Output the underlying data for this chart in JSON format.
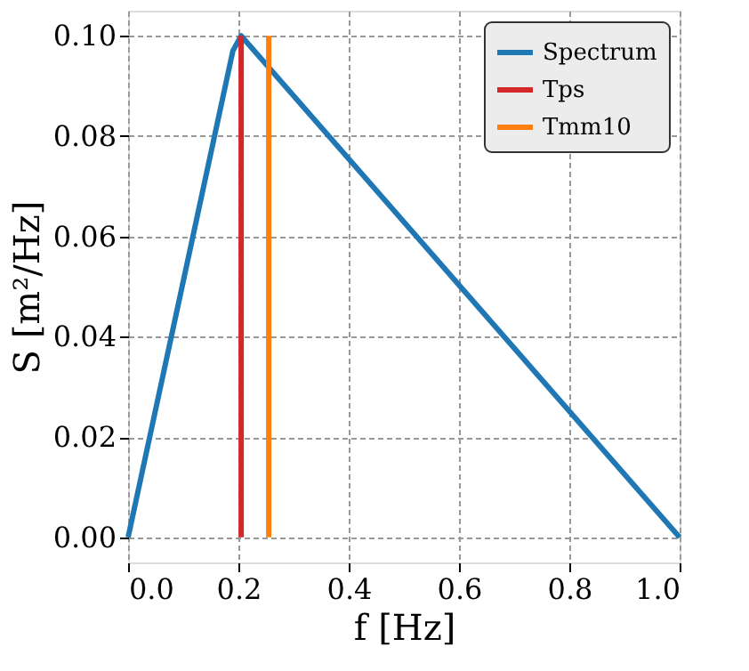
{
  "chart_data": {
    "type": "line",
    "xlabel": "f [Hz]",
    "ylabel": "S [m²/Hz]",
    "xlim": [
      0.0,
      1.0
    ],
    "xticks": [
      {
        "value": 0,
        "label": "0.0"
      },
      {
        "value": 0.2,
        "label": "0.2"
      },
      {
        "value": 0.4,
        "label": "0.4"
      },
      {
        "value": 0.6,
        "label": "0.6"
      },
      {
        "value": 0.8,
        "label": "0.8"
      },
      {
        "value": 1,
        "label": "1.0"
      }
    ],
    "ylim": [
      -0.005,
      0.105
    ],
    "yticks": [
      {
        "value": 0,
        "label": "0.00"
      },
      {
        "value": 0.02,
        "label": "0.02"
      },
      {
        "value": 0.04,
        "label": "0.04"
      },
      {
        "value": 0.06,
        "label": "0.06"
      },
      {
        "value": 0.08,
        "label": "0.08"
      },
      {
        "value": 0.1,
        "label": "0.10"
      }
    ],
    "grid": true,
    "legend": "top right",
    "line_style": "solid",
    "marker": "none",
    "series": [
      {
        "name": "Spectrum",
        "color": "#1f77b4",
        "x": [
          0.0,
          0.19,
          0.205,
          1.0
        ],
        "values": [
          0.0,
          0.097,
          0.1,
          0.0
        ]
      },
      {
        "name": "Tps",
        "color": "#d62728",
        "x": [
          0.205,
          0.205
        ],
        "values": [
          0.0,
          0.1
        ]
      },
      {
        "name": "Tmm10",
        "color": "#ff7f0e",
        "x": [
          0.255,
          0.255
        ],
        "values": [
          0.0,
          0.1
        ]
      }
    ]
  }
}
